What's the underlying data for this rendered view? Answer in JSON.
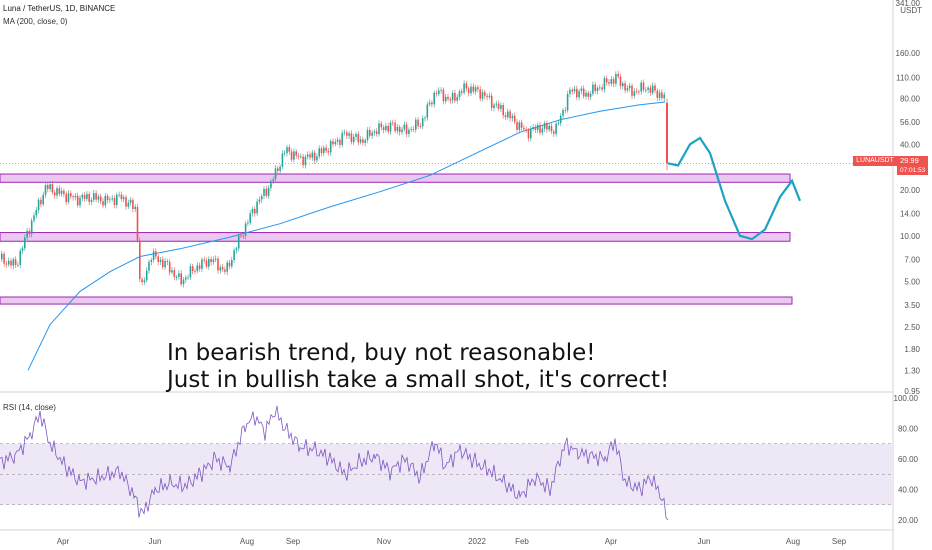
{
  "header": {
    "symbol_line": "Luna / TetherUS, 1D, BINANCE",
    "ma_line": "MA (200, close, 0)",
    "rsi_line": "RSI (14, close)",
    "currency": "USDT"
  },
  "price_tag": {
    "symbol": "LUNAUSDT",
    "value": "29.99",
    "countdown": "07:01:53"
  },
  "annotation": {
    "line1": "In bearish trend, buy not reasonable!",
    "line2": "Just in bullish take a small shot, it's correct!"
  },
  "colors": {
    "up": "#26a69a",
    "down": "#ef5350",
    "ma": "#2196f3",
    "projection": "#1ca3c4",
    "zone_fill": "#e9bdf0",
    "zone_stroke": "#9c27b0",
    "rsi_line": "#7e57c2",
    "rsi_band": "#ede7f6"
  },
  "chart_data": {
    "type": "candlestick",
    "scale": "log",
    "y_ticks": [
      "341.00",
      "160.00",
      "110.00",
      "80.00",
      "56.00",
      "40.00",
      "29.99",
      "20.00",
      "14.00",
      "10.00",
      "7.00",
      "5.00",
      "3.50",
      "2.50",
      "1.80",
      "1.30",
      "0.95"
    ],
    "y_tick_values": [
      341,
      160,
      110,
      80,
      56,
      40,
      29.99,
      20,
      14,
      10,
      7,
      5,
      3.5,
      2.5,
      1.8,
      1.3,
      0.95
    ],
    "x_ticks": [
      "Apr",
      "Jun",
      "Aug",
      "Sep",
      "Nov",
      "2022",
      "Feb",
      "Apr",
      "Jun",
      "Aug",
      "Sep"
    ],
    "price_path": [
      [
        0,
        7
      ],
      [
        15,
        6.4
      ],
      [
        30,
        12
      ],
      [
        45,
        21
      ],
      [
        60,
        19
      ],
      [
        75,
        17.5
      ],
      [
        90,
        18
      ],
      [
        105,
        17
      ],
      [
        120,
        18
      ],
      [
        135,
        15
      ],
      [
        140,
        4.2
      ],
      [
        150,
        7.5
      ],
      [
        165,
        6.5
      ],
      [
        180,
        5
      ],
      [
        195,
        6.2
      ],
      [
        210,
        7
      ],
      [
        225,
        5.8
      ],
      [
        240,
        10
      ],
      [
        255,
        16
      ],
      [
        270,
        22
      ],
      [
        285,
        37
      ],
      [
        300,
        32
      ],
      [
        315,
        34
      ],
      [
        330,
        39
      ],
      [
        345,
        47
      ],
      [
        360,
        42
      ],
      [
        375,
        50
      ],
      [
        390,
        53
      ],
      [
        405,
        49
      ],
      [
        420,
        55
      ],
      [
        435,
        90
      ],
      [
        450,
        78
      ],
      [
        465,
        95
      ],
      [
        480,
        88
      ],
      [
        495,
        72
      ],
      [
        510,
        60
      ],
      [
        525,
        48
      ],
      [
        540,
        52
      ],
      [
        555,
        50
      ],
      [
        570,
        92
      ],
      [
        585,
        85
      ],
      [
        600,
        97
      ],
      [
        615,
        110
      ],
      [
        630,
        88
      ],
      [
        645,
        95
      ],
      [
        660,
        85
      ],
      [
        665,
        80
      ],
      [
        668,
        30
      ]
    ],
    "ma_path": [
      [
        28,
        1.3
      ],
      [
        50,
        2.6
      ],
      [
        80,
        4.3
      ],
      [
        110,
        5.8
      ],
      [
        140,
        7.3
      ],
      [
        180,
        8.2
      ],
      [
        230,
        9.8
      ],
      [
        280,
        12
      ],
      [
        330,
        15.5
      ],
      [
        380,
        19.5
      ],
      [
        430,
        25
      ],
      [
        480,
        36
      ],
      [
        520,
        48
      ],
      [
        560,
        58
      ],
      [
        600,
        66
      ],
      [
        640,
        73
      ],
      [
        665,
        76
      ]
    ],
    "projection_path": [
      [
        668,
        30
      ],
      [
        678,
        29
      ],
      [
        690,
        40
      ],
      [
        700,
        44
      ],
      [
        710,
        35
      ],
      [
        725,
        17
      ],
      [
        740,
        10
      ],
      [
        752,
        9.5
      ],
      [
        765,
        11
      ],
      [
        780,
        18
      ],
      [
        792,
        23
      ],
      [
        800,
        17
      ]
    ],
    "zones": [
      {
        "from": 22.5,
        "to": 25.5
      },
      {
        "from": 9.2,
        "to": 10.5
      },
      {
        "from": 3.55,
        "to": 3.95
      }
    ],
    "current_price": 29.99,
    "rsi": {
      "levels": [
        70,
        50,
        30
      ],
      "y_ticks": [
        "100.00",
        "80.00",
        "60.00",
        "40.00",
        "20.00"
      ],
      "y_tick_values": [
        100,
        80,
        60,
        40,
        20
      ],
      "path": [
        [
          0,
          58
        ],
        [
          15,
          62
        ],
        [
          30,
          75
        ],
        [
          40,
          90
        ],
        [
          50,
          70
        ],
        [
          65,
          55
        ],
        [
          80,
          45
        ],
        [
          100,
          48
        ],
        [
          120,
          52
        ],
        [
          135,
          35
        ],
        [
          142,
          23
        ],
        [
          155,
          40
        ],
        [
          170,
          44
        ],
        [
          185,
          42
        ],
        [
          200,
          50
        ],
        [
          215,
          60
        ],
        [
          230,
          55
        ],
        [
          245,
          82
        ],
        [
          255,
          88
        ],
        [
          265,
          78
        ],
        [
          275,
          92
        ],
        [
          285,
          80
        ],
        [
          300,
          68
        ],
        [
          315,
          66
        ],
        [
          330,
          60
        ],
        [
          345,
          50
        ],
        [
          360,
          58
        ],
        [
          375,
          62
        ],
        [
          390,
          52
        ],
        [
          405,
          60
        ],
        [
          420,
          48
        ],
        [
          435,
          72
        ],
        [
          445,
          55
        ],
        [
          460,
          66
        ],
        [
          475,
          58
        ],
        [
          490,
          52
        ],
        [
          505,
          44
        ],
        [
          520,
          35
        ],
        [
          535,
          48
        ],
        [
          550,
          40
        ],
        [
          565,
          70
        ],
        [
          578,
          64
        ],
        [
          592,
          62
        ],
        [
          605,
          60
        ],
        [
          615,
          72
        ],
        [
          625,
          45
        ],
        [
          640,
          40
        ],
        [
          650,
          48
        ],
        [
          660,
          38
        ],
        [
          668,
          20
        ]
      ]
    }
  }
}
